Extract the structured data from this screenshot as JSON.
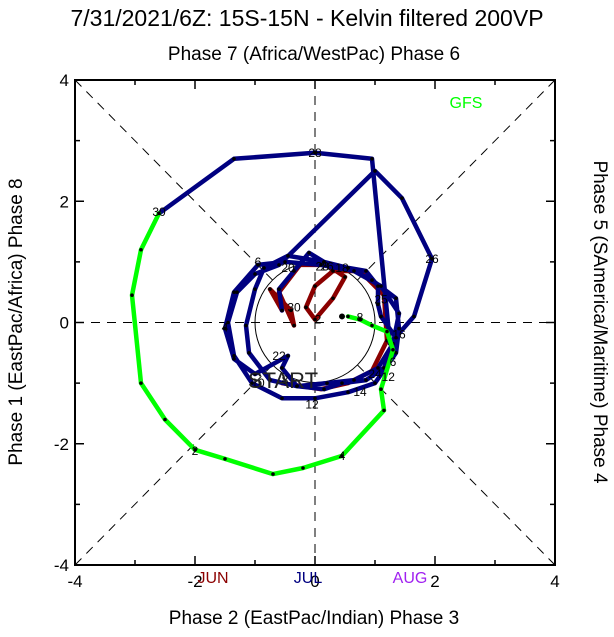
{
  "chart_data": {
    "type": "line",
    "title": "7/31/2021/6Z: 15S-15N - Kelvin filtered 200VP",
    "top_label": "Phase 7 (Africa/WestPac) Phase 6",
    "xlabel": "Phase 2 (EastPac/Indian) Phase 3",
    "left_label": "Phase 1 (EastPac/Africa) Phase 8",
    "right_label": "Phase 5 (SAmerica/Maritime) Phase 4",
    "xlim": [
      -4,
      4
    ],
    "ylim": [
      -4,
      4
    ],
    "xticks": [
      "-4",
      "-2",
      "0",
      "2",
      "4"
    ],
    "yticks": [
      "-4",
      "-2",
      "0",
      "2",
      "4"
    ],
    "start_label": "START",
    "legend_position": "top-right",
    "colors": {
      "jun": "#8b0000",
      "jul": "#000080",
      "aug": "#a020f0",
      "gfs": "#00ff00"
    },
    "month_labels": [
      {
        "text": "JUN",
        "color": "#8b0000"
      },
      {
        "text": "JUL",
        "color": "#000080"
      },
      {
        "text": "AUG",
        "color": "#a020f0"
      }
    ],
    "series": [
      {
        "name": "JUN",
        "color": "#8b0000",
        "points": [
          [
            -0.55,
            -1.0
          ],
          [
            0.1,
            -1.1
          ],
          [
            0.55,
            -1.0
          ],
          [
            0.95,
            -0.8
          ],
          [
            1.2,
            -0.3
          ],
          [
            1.15,
            0.45
          ],
          [
            0.75,
            0.85
          ],
          [
            0.3,
            0.85
          ],
          [
            0.0,
            0.6
          ],
          [
            -0.15,
            0.25
          ],
          [
            0.0,
            0.05
          ],
          [
            0.3,
            0.4
          ],
          [
            0.5,
            0.75
          ],
          [
            0.2,
            0.95
          ],
          [
            -0.25,
            0.95
          ],
          [
            -0.6,
            0.5
          ],
          [
            -0.35,
            -0.05
          ],
          [
            -0.4,
            0.2
          ],
          [
            -0.75,
            0.55
          ],
          [
            -0.55,
            0.2
          ]
        ]
      },
      {
        "name": "JUL",
        "color": "#000080",
        "points": [
          [
            -0.55,
            0.2
          ],
          [
            -0.6,
            0.55
          ],
          [
            -0.35,
            0.85
          ],
          [
            -0.1,
            1.15
          ],
          [
            0.15,
            1.0
          ],
          [
            0.55,
            0.9
          ],
          [
            0.85,
            0.85
          ],
          [
            1.05,
            0.6
          ],
          [
            1.05,
            0.3
          ],
          [
            1.1,
            0.1
          ],
          [
            1.35,
            -0.25
          ],
          [
            1.15,
            -0.75
          ],
          [
            0.85,
            -0.95
          ],
          [
            0.45,
            -1.0
          ],
          [
            0.15,
            -1.1
          ],
          [
            -0.3,
            -1.05
          ],
          [
            -0.55,
            -0.75
          ],
          [
            -0.45,
            -0.55
          ],
          [
            -1.0,
            -0.85
          ],
          [
            -1.35,
            -0.6
          ],
          [
            -1.5,
            -0.1
          ],
          [
            -1.35,
            0.5
          ],
          [
            -0.95,
            0.95
          ],
          [
            -0.5,
            1.0
          ],
          [
            0.1,
            0.95
          ],
          [
            0.65,
            0.85
          ],
          [
            1.1,
            0.6
          ],
          [
            1.4,
            0.15
          ],
          [
            1.3,
            -0.35
          ],
          [
            1.05,
            -0.75
          ],
          [
            0.65,
            -0.95
          ],
          [
            0.2,
            -1.0
          ],
          [
            -0.3,
            -1.05
          ],
          [
            -0.75,
            -0.95
          ],
          [
            -1.1,
            -0.5
          ],
          [
            -1.15,
            -0.05
          ],
          [
            -1.0,
            0.55
          ],
          [
            -0.85,
            0.9
          ],
          [
            -0.45,
            1.1
          ],
          [
            0.15,
            1.0
          ],
          [
            0.55,
            0.9
          ],
          [
            0.95,
            0.7
          ],
          [
            1.35,
            0.4
          ],
          [
            1.4,
            -0.1
          ],
          [
            1.35,
            -0.5
          ],
          [
            1.0,
            -1.0
          ],
          [
            0.55,
            -1.15
          ],
          [
            0.0,
            -1.25
          ],
          [
            -0.55,
            -1.25
          ],
          [
            -1.05,
            -1.0
          ],
          [
            -1.35,
            -0.55
          ],
          [
            -1.45,
            0.0
          ],
          [
            -1.3,
            0.5
          ],
          [
            -1.0,
            0.8
          ],
          [
            -0.6,
            0.95
          ],
          [
            1.0,
            2.5
          ],
          [
            1.45,
            2.05
          ],
          [
            1.95,
            1.05
          ],
          [
            1.65,
            0.1
          ],
          [
            1.25,
            -0.35
          ],
          [
            0.95,
            2.7
          ],
          [
            0.0,
            2.8
          ],
          [
            -1.35,
            2.7
          ],
          [
            -2.6,
            1.8
          ]
        ]
      },
      {
        "name": "GFS",
        "color": "#00ff00",
        "points": [
          [
            0.55,
            0.1
          ],
          [
            0.75,
            0.05
          ],
          [
            0.95,
            -0.05
          ],
          [
            1.2,
            -0.15
          ],
          [
            1.3,
            -0.45
          ],
          [
            1.1,
            -1.1
          ],
          [
            1.15,
            -1.45
          ],
          [
            0.45,
            -2.2
          ],
          [
            -0.2,
            -2.4
          ],
          [
            -0.7,
            -2.5
          ],
          [
            -1.5,
            -2.25
          ],
          [
            -2.0,
            -2.1
          ],
          [
            -2.5,
            -1.6
          ],
          [
            -2.9,
            -1.0
          ],
          [
            -3.05,
            0.45
          ],
          [
            -2.9,
            1.2
          ],
          [
            -2.6,
            1.8
          ]
        ]
      }
    ],
    "day_labels": [
      {
        "text": "28",
        "x": 0.0,
        "y": 2.8,
        "color": "#000000"
      },
      {
        "text": "30",
        "x": -2.6,
        "y": 1.82,
        "color": "#000000"
      },
      {
        "text": "26",
        "x": 1.95,
        "y": 1.05,
        "color": "#000000"
      },
      {
        "text": "18",
        "x": 0.45,
        "y": 0.9,
        "color": "#000000"
      },
      {
        "text": "20",
        "x": -0.45,
        "y": 0.9,
        "color": "#000000"
      },
      {
        "text": "6",
        "x": -0.95,
        "y": 1.0,
        "color": "#000000"
      },
      {
        "text": "26",
        "x": 0.2,
        "y": 0.92,
        "color": "#000000"
      },
      {
        "text": "28",
        "x": 0.12,
        "y": 0.92,
        "color": "#000000"
      },
      {
        "text": "30",
        "x": -0.35,
        "y": 0.25,
        "color": "#000000"
      },
      {
        "text": "2",
        "x": 0.05,
        "y": 0.05,
        "color": "#000000"
      },
      {
        "text": "25",
        "x": 1.1,
        "y": 0.38,
        "color": "#000000"
      },
      {
        "text": "8",
        "x": 0.75,
        "y": 0.08,
        "color": "#000000"
      },
      {
        "text": "4",
        "x": -1.5,
        "y": -0.08,
        "color": "#000000"
      },
      {
        "text": "16",
        "x": 1.4,
        "y": -0.2,
        "color": "#000000"
      },
      {
        "text": "6",
        "x": 1.3,
        "y": -0.65,
        "color": "#000000"
      },
      {
        "text": "22",
        "x": -0.6,
        "y": -0.55,
        "color": "#000000"
      },
      {
        "text": "24",
        "x": 1.0,
        "y": -0.85,
        "color": "#000000"
      },
      {
        "text": "12",
        "x": 1.22,
        "y": -0.9,
        "color": "#000000"
      },
      {
        "text": "14",
        "x": 0.75,
        "y": -1.15,
        "color": "#000000"
      },
      {
        "text": "10",
        "x": -0.95,
        "y": -1.0,
        "color": "#000000"
      },
      {
        "text": "8",
        "x": -0.5,
        "y": -0.95,
        "color": "#000000"
      },
      {
        "text": "12",
        "x": -0.05,
        "y": -1.35,
        "color": "#000000"
      },
      {
        "text": "4",
        "x": 0.45,
        "y": -2.2,
        "color": "#000000"
      },
      {
        "text": "2",
        "x": -2.0,
        "y": -2.12,
        "color": "#000000"
      }
    ],
    "start_point": [
      0.45,
      0.1
    ]
  }
}
